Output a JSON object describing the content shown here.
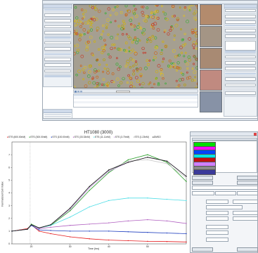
{
  "chart_data": {
    "type": "line",
    "title": "HT1080 (3000)",
    "xlabel": "Time (hrs)",
    "ylabel": "Normalized Cell Index",
    "xlim": [
      15,
      60
    ],
    "ylim": [
      0,
      8
    ],
    "xticks": [
      "20",
      "30",
      "40",
      "50"
    ],
    "yticks": [
      "0",
      "1",
      "2",
      "3",
      "4",
      "5",
      "6",
      "7"
    ],
    "legend_position": "top",
    "series": [
      {
        "name": "STS (600.00nM)",
        "color": "#e41a1c",
        "x": [
          15,
          19,
          20,
          22,
          25,
          30,
          35,
          40,
          45,
          50,
          55,
          60
        ],
        "y": [
          1.0,
          1.2,
          1.5,
          1.0,
          0.8,
          0.55,
          0.4,
          0.3,
          0.25,
          0.2,
          0.18,
          0.15
        ]
      },
      {
        "name": "STS (300.00nM)",
        "color": "#2ca02c",
        "x": [
          15,
          19,
          20,
          22,
          25,
          30,
          35,
          40,
          45,
          50,
          55,
          60
        ],
        "y": [
          1.0,
          1.15,
          1.55,
          1.25,
          1.45,
          2.6,
          4.2,
          5.6,
          6.6,
          7.0,
          6.4,
          4.9
        ]
      },
      {
        "name": "STS (100.00nM)",
        "color": "#1f3fbf",
        "x": [
          15,
          19,
          20,
          22,
          25,
          30,
          35,
          40,
          45,
          50,
          55,
          60
        ],
        "y": [
          1.0,
          1.15,
          1.45,
          1.1,
          1.05,
          1.0,
          1.0,
          1.0,
          0.95,
          0.9,
          0.85,
          0.8
        ]
      },
      {
        "name": "STS (33.33nM)",
        "color": "#b05fc0",
        "x": [
          15,
          19,
          20,
          22,
          25,
          30,
          35,
          40,
          45,
          50,
          55,
          60
        ],
        "y": [
          1.0,
          1.15,
          1.5,
          1.2,
          1.3,
          1.45,
          1.55,
          1.65,
          1.8,
          1.9,
          1.8,
          1.6
        ]
      },
      {
        "name": "STS (11.11nM)",
        "color": "#4ddde6",
        "x": [
          15,
          19,
          20,
          22,
          25,
          30,
          35,
          40,
          45,
          50,
          55,
          60
        ],
        "y": [
          1.0,
          1.15,
          1.5,
          1.25,
          1.45,
          2.1,
          2.9,
          3.4,
          3.6,
          3.6,
          3.5,
          3.4
        ]
      },
      {
        "name": "STS (3.70nM)",
        "color": "#c8a0e0",
        "x": [
          15,
          19,
          20,
          22,
          25,
          30,
          35,
          40,
          45,
          50,
          55,
          60
        ],
        "y": [
          1.0,
          1.15,
          1.5,
          1.25,
          1.5,
          2.7,
          4.4,
          5.7,
          6.4,
          6.8,
          6.5,
          5.3
        ]
      },
      {
        "name": "STS (1.23nM)",
        "color": "#c8c8c8",
        "x": [
          15,
          19,
          20,
          22,
          25,
          30,
          35,
          40,
          45,
          50,
          55,
          60
        ],
        "y": [
          1.0,
          1.15,
          1.5,
          1.25,
          1.5,
          2.8,
          4.5,
          5.8,
          6.5,
          6.6,
          6.3,
          5.2
        ]
      },
      {
        "name": "DMSO",
        "color": "#111111",
        "x": [
          15,
          19,
          20,
          22,
          25,
          30,
          35,
          40,
          45,
          50,
          55,
          60
        ],
        "y": [
          1.0,
          1.15,
          1.5,
          1.25,
          1.5,
          2.8,
          4.5,
          5.8,
          6.4,
          6.8,
          6.5,
          5.3
        ]
      }
    ]
  },
  "colors": {
    "swatches": [
      "#00dd00",
      "#ff00ff",
      "#0044ff",
      "#00e5e5",
      "#c01010",
      "#d080ff",
      "#8a8a8a",
      "#3a3a9a"
    ]
  },
  "icons": [
    "close-icon",
    "play-icon",
    "zoom-icon"
  ]
}
